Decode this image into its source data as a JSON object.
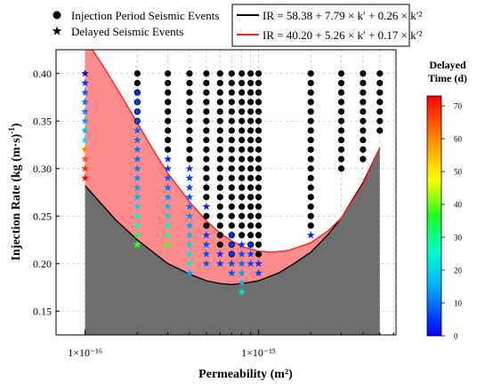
{
  "chart_data": {
    "type": "scatter",
    "xlabel": "Permeability (m²)",
    "ylabel_main": "Injection Rate (kg (m·s)",
    "ylabel_sup": "-1",
    "ylabel_close": ")",
    "x_scale": "log",
    "xlim": [
      6.8e-17,
      6.2e-15
    ],
    "ylim": [
      0.125,
      0.425
    ],
    "x_ticks": [
      {
        "value": 1e-16,
        "label": "1×10⁻¹⁶"
      },
      {
        "value": 1e-15,
        "label": "1×10⁻¹⁵"
      }
    ],
    "y_ticks": [
      0.15,
      0.2,
      0.25,
      0.3,
      0.35,
      0.4
    ],
    "y_tick_labels": [
      "0.15",
      "0.20",
      "0.25",
      "0.30",
      "0.35",
      "0.40"
    ],
    "grid": true,
    "legend_left": [
      {
        "marker": "circle",
        "label": "Injection Period Seismic Events"
      },
      {
        "marker": "star",
        "label": "Delayed Seismic Events"
      }
    ],
    "legend_right": [
      {
        "color": "#000000",
        "label": "IR = 58.38 + 7.79 × k′ + 0.26 × k′²"
      },
      {
        "color": "#ff2020",
        "label": "IR = 40.20 + 5.26 × k′ + 0.17 × k′²"
      }
    ],
    "curve_black": {
      "x": [
        1e-16,
        1.5e-16,
        2e-16,
        3e-16,
        4e-16,
        5e-16,
        6e-16,
        7e-16,
        8e-16,
        1e-15,
        1.3e-15,
        1.6e-15,
        2e-15,
        2.5e-15,
        3e-15,
        3.5e-15,
        4e-15,
        5e-15
      ],
      "y": [
        0.282,
        0.246,
        0.225,
        0.2,
        0.189,
        0.182,
        0.179,
        0.178,
        0.179,
        0.182,
        0.19,
        0.2,
        0.212,
        0.23,
        0.248,
        0.268,
        0.285,
        0.322
      ]
    },
    "curve_red": {
      "x": [
        1.1e-16,
        1.3e-16,
        1.6e-16,
        2e-16,
        2.5e-16,
        3e-16,
        4e-16,
        5e-16,
        6e-16,
        7e-16,
        8e-16,
        1e-15,
        1.2e-15,
        1.5e-15,
        2e-15,
        2.5e-15,
        3e-15,
        4e-15,
        5e-15
      ],
      "y": [
        0.425,
        0.405,
        0.378,
        0.348,
        0.318,
        0.295,
        0.265,
        0.245,
        0.232,
        0.224,
        0.218,
        0.213,
        0.212,
        0.214,
        0.222,
        0.234,
        0.248,
        0.283,
        0.322
      ]
    },
    "injection_events": [
      {
        "x": 2e-16,
        "y": [
          0.4,
          0.39,
          0.38,
          0.37,
          0.36,
          0.35
        ]
      },
      {
        "x": 3e-16,
        "y": [
          0.4,
          0.39,
          0.38,
          0.37,
          0.36,
          0.35,
          0.34,
          0.33,
          0.32
        ]
      },
      {
        "x": 4e-16,
        "y": [
          0.4,
          0.39,
          0.38,
          0.37,
          0.36,
          0.35,
          0.34,
          0.33,
          0.32,
          0.31
        ]
      },
      {
        "x": 5e-16,
        "y": [
          0.4,
          0.39,
          0.38,
          0.37,
          0.36,
          0.35,
          0.34,
          0.33,
          0.32,
          0.31,
          0.3,
          0.29,
          0.28,
          0.27,
          0.25,
          0.24
        ]
      },
      {
        "x": 6e-16,
        "y": [
          0.4,
          0.39,
          0.38,
          0.37,
          0.36,
          0.35,
          0.34,
          0.33,
          0.32,
          0.31,
          0.3,
          0.29,
          0.28,
          0.27,
          0.26,
          0.25,
          0.24,
          0.23,
          0.22
        ]
      },
      {
        "x": 7e-16,
        "y": [
          0.4,
          0.39,
          0.38,
          0.37,
          0.36,
          0.35,
          0.34,
          0.33,
          0.32,
          0.31,
          0.3,
          0.29,
          0.28,
          0.27,
          0.26,
          0.25,
          0.24,
          0.23,
          0.22,
          0.21
        ]
      },
      {
        "x": 8e-16,
        "y": [
          0.4,
          0.39,
          0.38,
          0.37,
          0.36,
          0.35,
          0.34,
          0.33,
          0.32,
          0.31,
          0.3,
          0.29,
          0.28,
          0.27,
          0.26,
          0.25,
          0.24,
          0.23
        ]
      },
      {
        "x": 9e-16,
        "y": [
          0.4,
          0.39,
          0.38,
          0.37,
          0.36,
          0.35,
          0.34,
          0.33,
          0.32,
          0.31,
          0.3,
          0.29,
          0.28,
          0.27,
          0.26,
          0.25,
          0.24,
          0.23,
          0.22
        ]
      },
      {
        "x": 1e-15,
        "y": [
          0.4,
          0.39,
          0.38,
          0.37,
          0.36,
          0.35,
          0.34,
          0.33,
          0.32,
          0.31,
          0.3,
          0.29,
          0.28,
          0.27,
          0.26,
          0.25,
          0.24,
          0.23,
          0.22,
          0.21
        ]
      },
      {
        "x": 2e-15,
        "y": [
          0.4,
          0.39,
          0.38,
          0.37,
          0.36,
          0.35,
          0.34,
          0.33,
          0.32,
          0.31,
          0.3,
          0.29,
          0.28,
          0.27,
          0.26,
          0.25,
          0.24
        ]
      },
      {
        "x": 3e-15,
        "y": [
          0.4,
          0.39,
          0.38,
          0.37,
          0.36,
          0.35,
          0.34,
          0.33,
          0.32,
          0.31,
          0.3
        ]
      },
      {
        "x": 4e-15,
        "y": [
          0.4,
          0.39,
          0.38,
          0.37,
          0.36,
          0.35,
          0.34,
          0.33,
          0.32,
          0.31
        ]
      },
      {
        "x": 5e-15,
        "y": [
          0.4,
          0.39,
          0.38,
          0.37,
          0.36,
          0.35,
          0.34
        ]
      }
    ],
    "delayed_events": [
      {
        "x": 1e-16,
        "points": [
          [
            0.4,
            0
          ],
          [
            0.39,
            5
          ],
          [
            0.38,
            8
          ],
          [
            0.37,
            10
          ],
          [
            0.36,
            12
          ],
          [
            0.35,
            14
          ],
          [
            0.34,
            18
          ],
          [
            0.33,
            22
          ],
          [
            0.32,
            60
          ],
          [
            0.31,
            65
          ],
          [
            0.3,
            68
          ],
          [
            0.29,
            72
          ]
        ]
      },
      {
        "x": 2e-16,
        "points": [
          [
            0.38,
            4
          ],
          [
            0.37,
            5
          ],
          [
            0.36,
            6
          ],
          [
            0.35,
            7
          ],
          [
            0.34,
            8
          ],
          [
            0.33,
            9
          ],
          [
            0.32,
            10
          ],
          [
            0.31,
            10
          ],
          [
            0.3,
            11
          ],
          [
            0.29,
            12
          ],
          [
            0.28,
            14
          ],
          [
            0.27,
            16
          ],
          [
            0.26,
            20
          ],
          [
            0.25,
            24
          ],
          [
            0.24,
            28
          ],
          [
            0.23,
            33
          ],
          [
            0.22,
            38
          ]
        ]
      },
      {
        "x": 3e-16,
        "points": [
          [
            0.31,
            3
          ],
          [
            0.3,
            5
          ],
          [
            0.29,
            8
          ],
          [
            0.28,
            10
          ],
          [
            0.27,
            13
          ],
          [
            0.26,
            16
          ],
          [
            0.25,
            20
          ],
          [
            0.24,
            24
          ],
          [
            0.23,
            30
          ],
          [
            0.22,
            38
          ]
        ]
      },
      {
        "x": 4e-16,
        "points": [
          [
            0.3,
            4
          ],
          [
            0.29,
            5
          ],
          [
            0.28,
            6
          ],
          [
            0.27,
            8
          ],
          [
            0.26,
            10
          ],
          [
            0.25,
            12
          ],
          [
            0.24,
            14
          ],
          [
            0.23,
            17
          ],
          [
            0.22,
            20
          ],
          [
            0.21,
            22
          ],
          [
            0.2,
            24
          ],
          [
            0.19,
            14
          ]
        ]
      },
      {
        "x": 5e-16,
        "points": [
          [
            0.26,
            3
          ],
          [
            0.23,
            5
          ],
          [
            0.22,
            6
          ],
          [
            0.21,
            7
          ],
          [
            0.2,
            8
          ]
        ]
      },
      {
        "x": 6e-16,
        "points": [
          [
            0.21,
            4
          ],
          [
            0.2,
            5
          ]
        ]
      },
      {
        "x": 7e-16,
        "points": [
          [
            0.23,
            4
          ],
          [
            0.22,
            5
          ],
          [
            0.21,
            5
          ],
          [
            0.2,
            6
          ],
          [
            0.19,
            7
          ]
        ]
      },
      {
        "x": 8e-16,
        "points": [
          [
            0.22,
            4
          ],
          [
            0.21,
            6
          ],
          [
            0.2,
            9
          ],
          [
            0.19,
            14
          ],
          [
            0.18,
            18
          ],
          [
            0.17,
            22
          ]
        ]
      },
      {
        "x": 9e-16,
        "points": [
          [
            0.22,
            4
          ],
          [
            0.21,
            5
          ],
          [
            0.2,
            6
          ]
        ]
      },
      {
        "x": 1e-15,
        "points": [
          [
            0.2,
            4
          ],
          [
            0.19,
            5
          ]
        ]
      },
      {
        "x": 2e-15,
        "points": [
          [
            0.23,
            3
          ]
        ]
      }
    ],
    "colorbar": {
      "title_line1": "Delayed",
      "title_line2": "Time (d)",
      "min": 0,
      "max": 73,
      "ticks": [
        0,
        10,
        20,
        30,
        40,
        50,
        60,
        70
      ],
      "tick_labels": [
        "0",
        "10",
        "20",
        "30",
        "40",
        "50",
        "60",
        "70"
      ]
    },
    "colors": {
      "red_band": "#ff7878",
      "gray_band": "#6e6e6e",
      "curve_black": "#000000",
      "curve_red": "#ff2020",
      "dot": "#000000"
    }
  }
}
